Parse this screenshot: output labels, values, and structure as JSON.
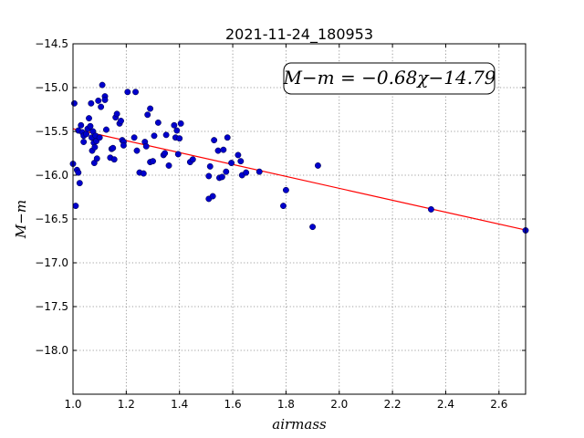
{
  "chart_data": {
    "type": "scatter",
    "title": "2021-11-24_180953",
    "xlabel": "airmass",
    "ylabel": "M−m",
    "xlim": [
      1.0,
      2.7
    ],
    "ylim": [
      -18.5,
      -14.5
    ],
    "y_inverted": true,
    "grid": true,
    "xticks": [
      "1.0",
      "1.2",
      "1.4",
      "1.6",
      "1.8",
      "2.0",
      "2.2",
      "2.4",
      "2.6"
    ],
    "yticks": [
      "−14.5",
      "−15.0",
      "−15.5",
      "−16.0",
      "−16.5",
      "−17.0",
      "−17.5",
      "−18.0"
    ],
    "annotation": "M−m = −0.68χ−14.79",
    "fit": {
      "slope": -0.68,
      "intercept": -14.79,
      "x_range": [
        1.0,
        2.7
      ]
    },
    "colors": {
      "points": "#0000cc",
      "fit": "#ff0000"
    },
    "points": [
      {
        "x": 1.005,
        "y": -15.18
      },
      {
        "x": 1.0,
        "y": -15.87
      },
      {
        "x": 1.01,
        "y": -16.35
      },
      {
        "x": 1.015,
        "y": -15.94
      },
      {
        "x": 1.02,
        "y": -15.97
      },
      {
        "x": 1.025,
        "y": -16.09
      },
      {
        "x": 1.02,
        "y": -15.49
      },
      {
        "x": 1.03,
        "y": -15.43
      },
      {
        "x": 1.035,
        "y": -15.51
      },
      {
        "x": 1.04,
        "y": -15.55
      },
      {
        "x": 1.04,
        "y": -15.62
      },
      {
        "x": 1.05,
        "y": -15.53
      },
      {
        "x": 1.055,
        "y": -15.47
      },
      {
        "x": 1.06,
        "y": -15.35
      },
      {
        "x": 1.065,
        "y": -15.44
      },
      {
        "x": 1.068,
        "y": -15.18
      },
      {
        "x": 1.07,
        "y": -15.57
      },
      {
        "x": 1.072,
        "y": -15.72
      },
      {
        "x": 1.075,
        "y": -15.5
      },
      {
        "x": 1.078,
        "y": -15.63
      },
      {
        "x": 1.08,
        "y": -15.86
      },
      {
        "x": 1.082,
        "y": -15.68
      },
      {
        "x": 1.085,
        "y": -15.55
      },
      {
        "x": 1.088,
        "y": -15.61
      },
      {
        "x": 1.09,
        "y": -15.81
      },
      {
        "x": 1.095,
        "y": -15.15
      },
      {
        "x": 1.1,
        "y": -15.57
      },
      {
        "x": 1.105,
        "y": -15.22
      },
      {
        "x": 1.11,
        "y": -14.97
      },
      {
        "x": 1.12,
        "y": -15.1
      },
      {
        "x": 1.12,
        "y": -15.14
      },
      {
        "x": 1.125,
        "y": -15.48
      },
      {
        "x": 1.14,
        "y": -15.8
      },
      {
        "x": 1.145,
        "y": -15.7
      },
      {
        "x": 1.15,
        "y": -15.69
      },
      {
        "x": 1.155,
        "y": -15.82
      },
      {
        "x": 1.16,
        "y": -15.34
      },
      {
        "x": 1.165,
        "y": -15.3
      },
      {
        "x": 1.175,
        "y": -15.41
      },
      {
        "x": 1.18,
        "y": -15.38
      },
      {
        "x": 1.185,
        "y": -15.6
      },
      {
        "x": 1.19,
        "y": -15.62
      },
      {
        "x": 1.19,
        "y": -15.66
      },
      {
        "x": 1.205,
        "y": -15.05
      },
      {
        "x": 1.23,
        "y": -15.57
      },
      {
        "x": 1.235,
        "y": -15.05
      },
      {
        "x": 1.24,
        "y": -15.72
      },
      {
        "x": 1.25,
        "y": -15.97
      },
      {
        "x": 1.265,
        "y": -15.98
      },
      {
        "x": 1.27,
        "y": -15.62
      },
      {
        "x": 1.275,
        "y": -15.67
      },
      {
        "x": 1.28,
        "y": -15.31
      },
      {
        "x": 1.29,
        "y": -15.24
      },
      {
        "x": 1.29,
        "y": -15.85
      },
      {
        "x": 1.3,
        "y": -15.84
      },
      {
        "x": 1.305,
        "y": -15.55
      },
      {
        "x": 1.32,
        "y": -15.4
      },
      {
        "x": 1.34,
        "y": -15.77
      },
      {
        "x": 1.345,
        "y": -15.75
      },
      {
        "x": 1.35,
        "y": -15.54
      },
      {
        "x": 1.36,
        "y": -15.89
      },
      {
        "x": 1.38,
        "y": -15.43
      },
      {
        "x": 1.385,
        "y": -15.57
      },
      {
        "x": 1.39,
        "y": -15.49
      },
      {
        "x": 1.395,
        "y": -15.76
      },
      {
        "x": 1.4,
        "y": -15.58
      },
      {
        "x": 1.405,
        "y": -15.41
      },
      {
        "x": 1.44,
        "y": -15.85
      },
      {
        "x": 1.45,
        "y": -15.82
      },
      {
        "x": 1.51,
        "y": -16.01
      },
      {
        "x": 1.51,
        "y": -16.27
      },
      {
        "x": 1.515,
        "y": -15.9
      },
      {
        "x": 1.525,
        "y": -16.24
      },
      {
        "x": 1.53,
        "y": -15.6
      },
      {
        "x": 1.545,
        "y": -15.72
      },
      {
        "x": 1.55,
        "y": -16.03
      },
      {
        "x": 1.56,
        "y": -16.02
      },
      {
        "x": 1.565,
        "y": -15.71
      },
      {
        "x": 1.575,
        "y": -15.96
      },
      {
        "x": 1.58,
        "y": -15.57
      },
      {
        "x": 1.595,
        "y": -15.86
      },
      {
        "x": 1.62,
        "y": -15.77
      },
      {
        "x": 1.63,
        "y": -15.84
      },
      {
        "x": 1.635,
        "y": -16.0
      },
      {
        "x": 1.65,
        "y": -15.97
      },
      {
        "x": 1.7,
        "y": -15.96
      },
      {
        "x": 1.79,
        "y": -16.35
      },
      {
        "x": 1.8,
        "y": -16.17
      },
      {
        "x": 1.9,
        "y": -16.59
      },
      {
        "x": 1.92,
        "y": -15.89
      },
      {
        "x": 2.345,
        "y": -16.39
      },
      {
        "x": 2.7,
        "y": -16.63
      }
    ]
  }
}
